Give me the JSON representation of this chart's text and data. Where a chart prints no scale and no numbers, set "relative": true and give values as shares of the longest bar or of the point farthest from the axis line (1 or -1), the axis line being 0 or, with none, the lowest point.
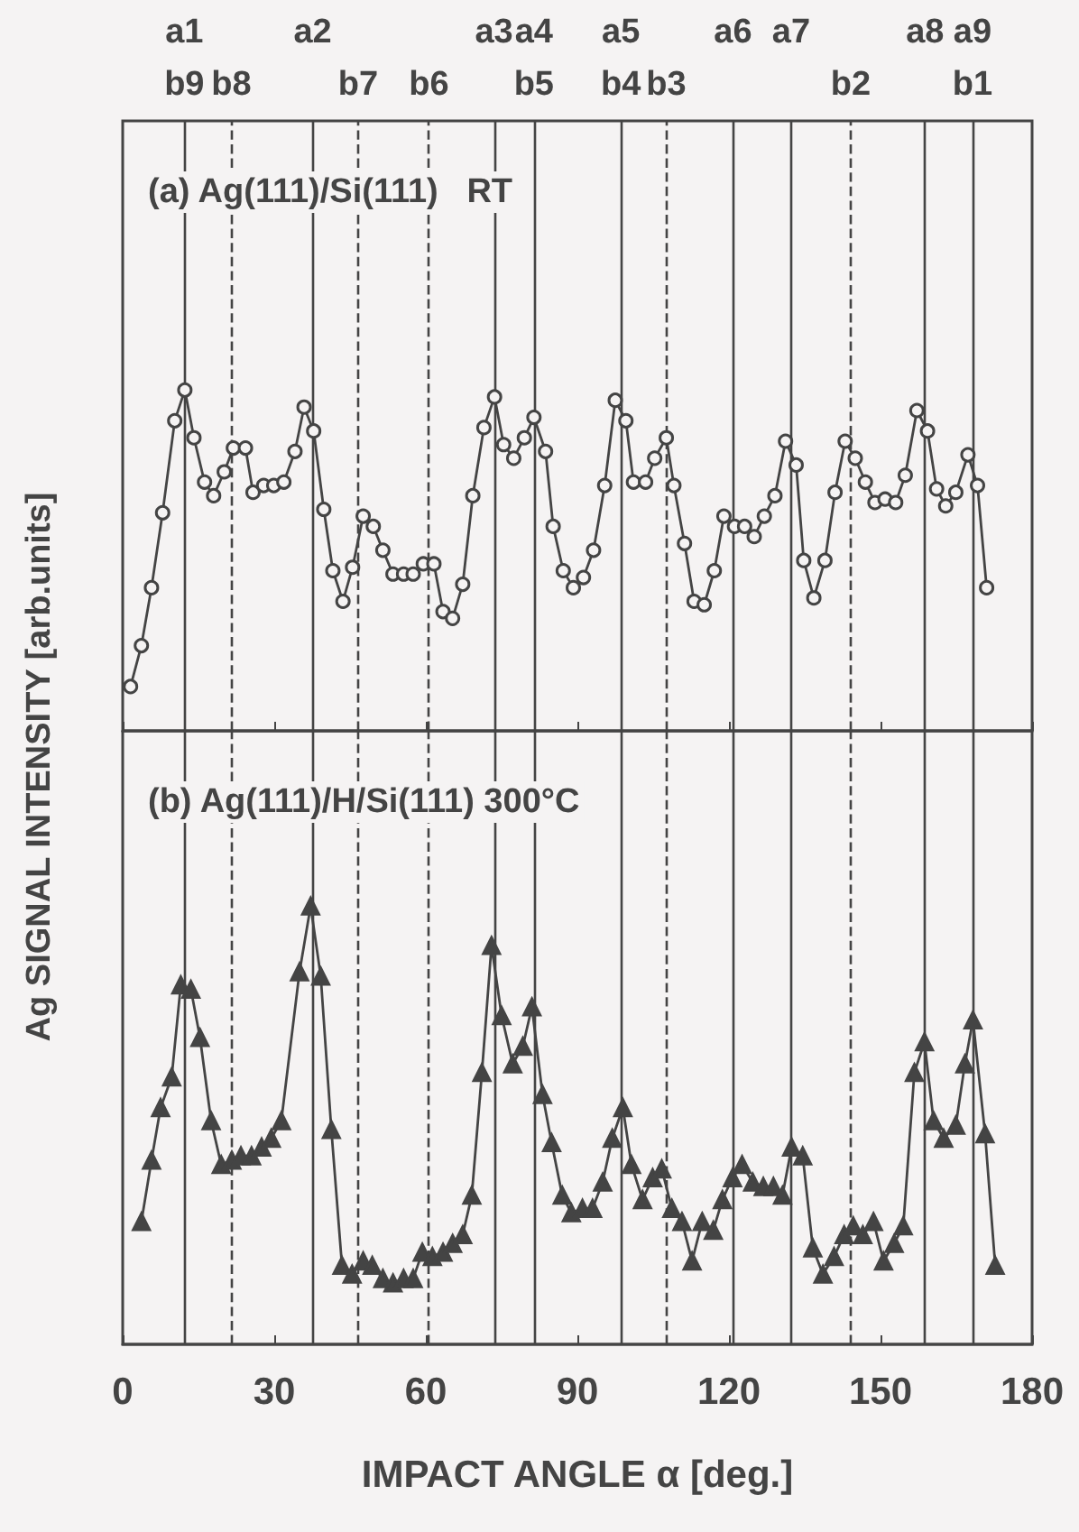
{
  "chart_data": [
    {
      "type": "line",
      "title": "(a) Ag(111)/Si(111)   RT",
      "ylabel": "Ag SIGNAL INTENSITY [arb.units]",
      "relative": true,
      "marker": "circle",
      "line_style": "solid",
      "grid": false,
      "tick_labels": false,
      "xlim": [
        0,
        180
      ],
      "xticks": [
        0,
        30,
        60,
        90,
        120,
        150,
        180
      ],
      "series": [
        {
          "color": "#444444",
          "x": [
            1.55,
            3.7,
            5.7,
            7.9,
            10.3,
            12.3,
            14.1,
            16.2,
            18.0,
            20.1,
            21.9,
            24.3,
            25.8,
            27.9,
            29.9,
            31.9,
            34.1,
            35.9,
            37.8,
            39.8,
            41.6,
            43.6,
            45.5,
            47.6,
            49.6,
            51.5,
            53.5,
            55.6,
            57.5,
            59.5,
            61.6,
            63.4,
            65.3,
            67.3,
            69.3,
            71.5,
            73.6,
            75.4,
            77.4,
            79.5,
            81.4,
            83.7,
            85.2,
            87.2,
            89.2,
            91.2,
            93.2,
            95.4,
            97.5,
            99.6,
            101.1,
            103.5,
            105.3,
            107.6,
            109.1,
            111.2,
            113.1,
            115.1,
            117.1,
            119.0,
            121.1,
            123.1,
            125.0,
            127.0,
            129.1,
            131.2,
            133.3,
            134.8,
            136.8,
            139.0,
            141.0,
            143.0,
            145.0,
            147.0,
            148.9,
            150.9,
            153.0,
            154.9,
            157.2,
            159.3,
            161.1,
            162.9,
            164.9,
            167.3,
            169.2,
            171.0
          ],
          "values": [
            0.13,
            0.25,
            0.42,
            0.64,
            0.91,
            1.0,
            0.86,
            0.73,
            0.69,
            0.76,
            0.83,
            0.83,
            0.7,
            0.72,
            0.72,
            0.73,
            0.82,
            0.95,
            0.88,
            0.65,
            0.47,
            0.38,
            0.48,
            0.63,
            0.6,
            0.53,
            0.46,
            0.46,
            0.46,
            0.49,
            0.49,
            0.35,
            0.33,
            0.43,
            0.69,
            0.89,
            0.98,
            0.84,
            0.8,
            0.86,
            0.92,
            0.82,
            0.6,
            0.47,
            0.42,
            0.45,
            0.53,
            0.72,
            0.97,
            0.91,
            0.73,
            0.73,
            0.8,
            0.86,
            0.72,
            0.55,
            0.38,
            0.37,
            0.47,
            0.63,
            0.6,
            0.6,
            0.57,
            0.63,
            0.69,
            0.85,
            0.78,
            0.5,
            0.39,
            0.5,
            0.7,
            0.85,
            0.8,
            0.73,
            0.67,
            0.68,
            0.67,
            0.75,
            0.94,
            0.88,
            0.71,
            0.66,
            0.7,
            0.81,
            0.72,
            0.42
          ]
        }
      ],
      "ref_lines": [
        {
          "axis": "x",
          "value": 12.2,
          "label": "a1\nb9",
          "line_style": "solid",
          "color": "#444444"
        },
        {
          "axis": "x",
          "value": 21.5,
          "label": "b8",
          "line_style": "dashed",
          "color": "#444444"
        },
        {
          "axis": "x",
          "value": 37.6,
          "label": "a2",
          "line_style": "solid",
          "color": "#444444"
        },
        {
          "axis": "x",
          "value": 46.6,
          "label": "b7",
          "line_style": "dashed",
          "color": "#444444"
        },
        {
          "axis": "x",
          "value": 60.6,
          "label": "b6",
          "line_style": "dashed",
          "color": "#444444"
        },
        {
          "axis": "x",
          "value": 73.5,
          "label": "a3",
          "line_style": "solid",
          "color": "#444444"
        },
        {
          "axis": "x",
          "value": 81.4,
          "label": "a4\nb5",
          "line_style": "solid",
          "color": "#444444"
        },
        {
          "axis": "x",
          "value": 98.6,
          "label": "a5\nb4",
          "line_style": "solid",
          "color": "#444444"
        },
        {
          "axis": "x",
          "value": 107.6,
          "label": "b3",
          "line_style": "dashed",
          "color": "#444444"
        },
        {
          "axis": "x",
          "value": 120.8,
          "label": "a6",
          "line_style": "solid",
          "color": "#444444"
        },
        {
          "axis": "x",
          "value": 132.3,
          "label": "a7",
          "line_style": "solid",
          "color": "#444444"
        },
        {
          "axis": "x",
          "value": 144.1,
          "label": "b2",
          "line_style": "dashed",
          "color": "#444444"
        },
        {
          "axis": "x",
          "value": 158.8,
          "label": "a8",
          "line_style": "solid",
          "color": "#444444"
        },
        {
          "axis": "x",
          "value": 168.2,
          "label": "a9\nb1",
          "line_style": "solid",
          "color": "#444444"
        }
      ]
    },
    {
      "type": "line",
      "title": "(b) Ag(111)/H/Si(111) 300°C",
      "xlabel": "IMPACT ANGLE α [deg.]",
      "relative": true,
      "marker": "triangle",
      "line_style": "solid",
      "grid": false,
      "tick_labels": "x",
      "xlim": [
        0,
        180
      ],
      "xticks": [
        0,
        30,
        60,
        90,
        120,
        150,
        180
      ],
      "series": [
        {
          "color": "#444444",
          "x": [
            3.7,
            5.7,
            7.5,
            9.7,
            11.5,
            13.5,
            15.3,
            17.5,
            19.5,
            21.6,
            23.4,
            25.5,
            27.5,
            29.4,
            31.4,
            35.0,
            37.2,
            39.2,
            41.3,
            43.4,
            45.4,
            47.6,
            49.4,
            51.5,
            53.5,
            55.6,
            57.5,
            59.3,
            61.3,
            63.4,
            65.3,
            67.3,
            69.1,
            71.1,
            73.0,
            75.0,
            77.2,
            79.2,
            81.0,
            83.1,
            84.9,
            87.0,
            88.8,
            91.0,
            93.0,
            95.0,
            96.9,
            99.0,
            100.7,
            102.9,
            104.9,
            106.7,
            108.7,
            110.7,
            112.7,
            114.7,
            116.9,
            118.7,
            120.7,
            122.6,
            124.7,
            126.8,
            128.8,
            130.6,
            132.4,
            134.6,
            136.6,
            138.6,
            140.8,
            142.8,
            144.6,
            146.5,
            148.6,
            150.6,
            152.7,
            154.5,
            156.7,
            158.7,
            160.5,
            162.5,
            164.9,
            166.7,
            168.3,
            170.7,
            172.7
          ],
          "values": [
            0.28,
            0.42,
            0.54,
            0.61,
            0.82,
            0.81,
            0.7,
            0.51,
            0.41,
            0.42,
            0.43,
            0.43,
            0.45,
            0.47,
            0.51,
            0.85,
            1.0,
            0.84,
            0.49,
            0.18,
            0.16,
            0.19,
            0.18,
            0.15,
            0.14,
            0.15,
            0.15,
            0.21,
            0.2,
            0.21,
            0.23,
            0.25,
            0.34,
            0.62,
            0.91,
            0.75,
            0.64,
            0.68,
            0.77,
            0.57,
            0.46,
            0.34,
            0.3,
            0.31,
            0.31,
            0.37,
            0.47,
            0.54,
            0.41,
            0.33,
            0.38,
            0.4,
            0.31,
            0.28,
            0.19,
            0.28,
            0.26,
            0.33,
            0.38,
            0.41,
            0.37,
            0.36,
            0.36,
            0.34,
            0.45,
            0.43,
            0.22,
            0.16,
            0.2,
            0.25,
            0.27,
            0.25,
            0.28,
            0.19,
            0.23,
            0.27,
            0.62,
            0.69,
            0.51,
            0.47,
            0.5,
            0.64,
            0.74,
            0.48,
            0.18
          ]
        }
      ],
      "ref_lines": [
        {
          "axis": "x",
          "value": 12.2,
          "label": null,
          "line_style": "solid",
          "color": "#444444"
        },
        {
          "axis": "x",
          "value": 21.5,
          "label": null,
          "line_style": "dashed",
          "color": "#444444"
        },
        {
          "axis": "x",
          "value": 37.6,
          "label": null,
          "line_style": "solid",
          "color": "#444444"
        },
        {
          "axis": "x",
          "value": 46.6,
          "label": null,
          "line_style": "dashed",
          "color": "#444444"
        },
        {
          "axis": "x",
          "value": 60.6,
          "label": null,
          "line_style": "dashed",
          "color": "#444444"
        },
        {
          "axis": "x",
          "value": 73.5,
          "label": null,
          "line_style": "solid",
          "color": "#444444"
        },
        {
          "axis": "x",
          "value": 81.4,
          "label": null,
          "line_style": "solid",
          "color": "#444444"
        },
        {
          "axis": "x",
          "value": 98.6,
          "label": null,
          "line_style": "solid",
          "color": "#444444"
        },
        {
          "axis": "x",
          "value": 107.6,
          "label": null,
          "line_style": "dashed",
          "color": "#444444"
        },
        {
          "axis": "x",
          "value": 120.8,
          "label": null,
          "line_style": "solid",
          "color": "#444444"
        },
        {
          "axis": "x",
          "value": 132.3,
          "label": null,
          "line_style": "solid",
          "color": "#444444"
        },
        {
          "axis": "x",
          "value": 144.1,
          "label": null,
          "line_style": "dashed",
          "color": "#444444"
        },
        {
          "axis": "x",
          "value": 158.8,
          "label": null,
          "line_style": "solid",
          "color": "#444444"
        },
        {
          "axis": "x",
          "value": 168.2,
          "label": null,
          "line_style": "solid",
          "color": "#444444"
        }
      ]
    }
  ]
}
